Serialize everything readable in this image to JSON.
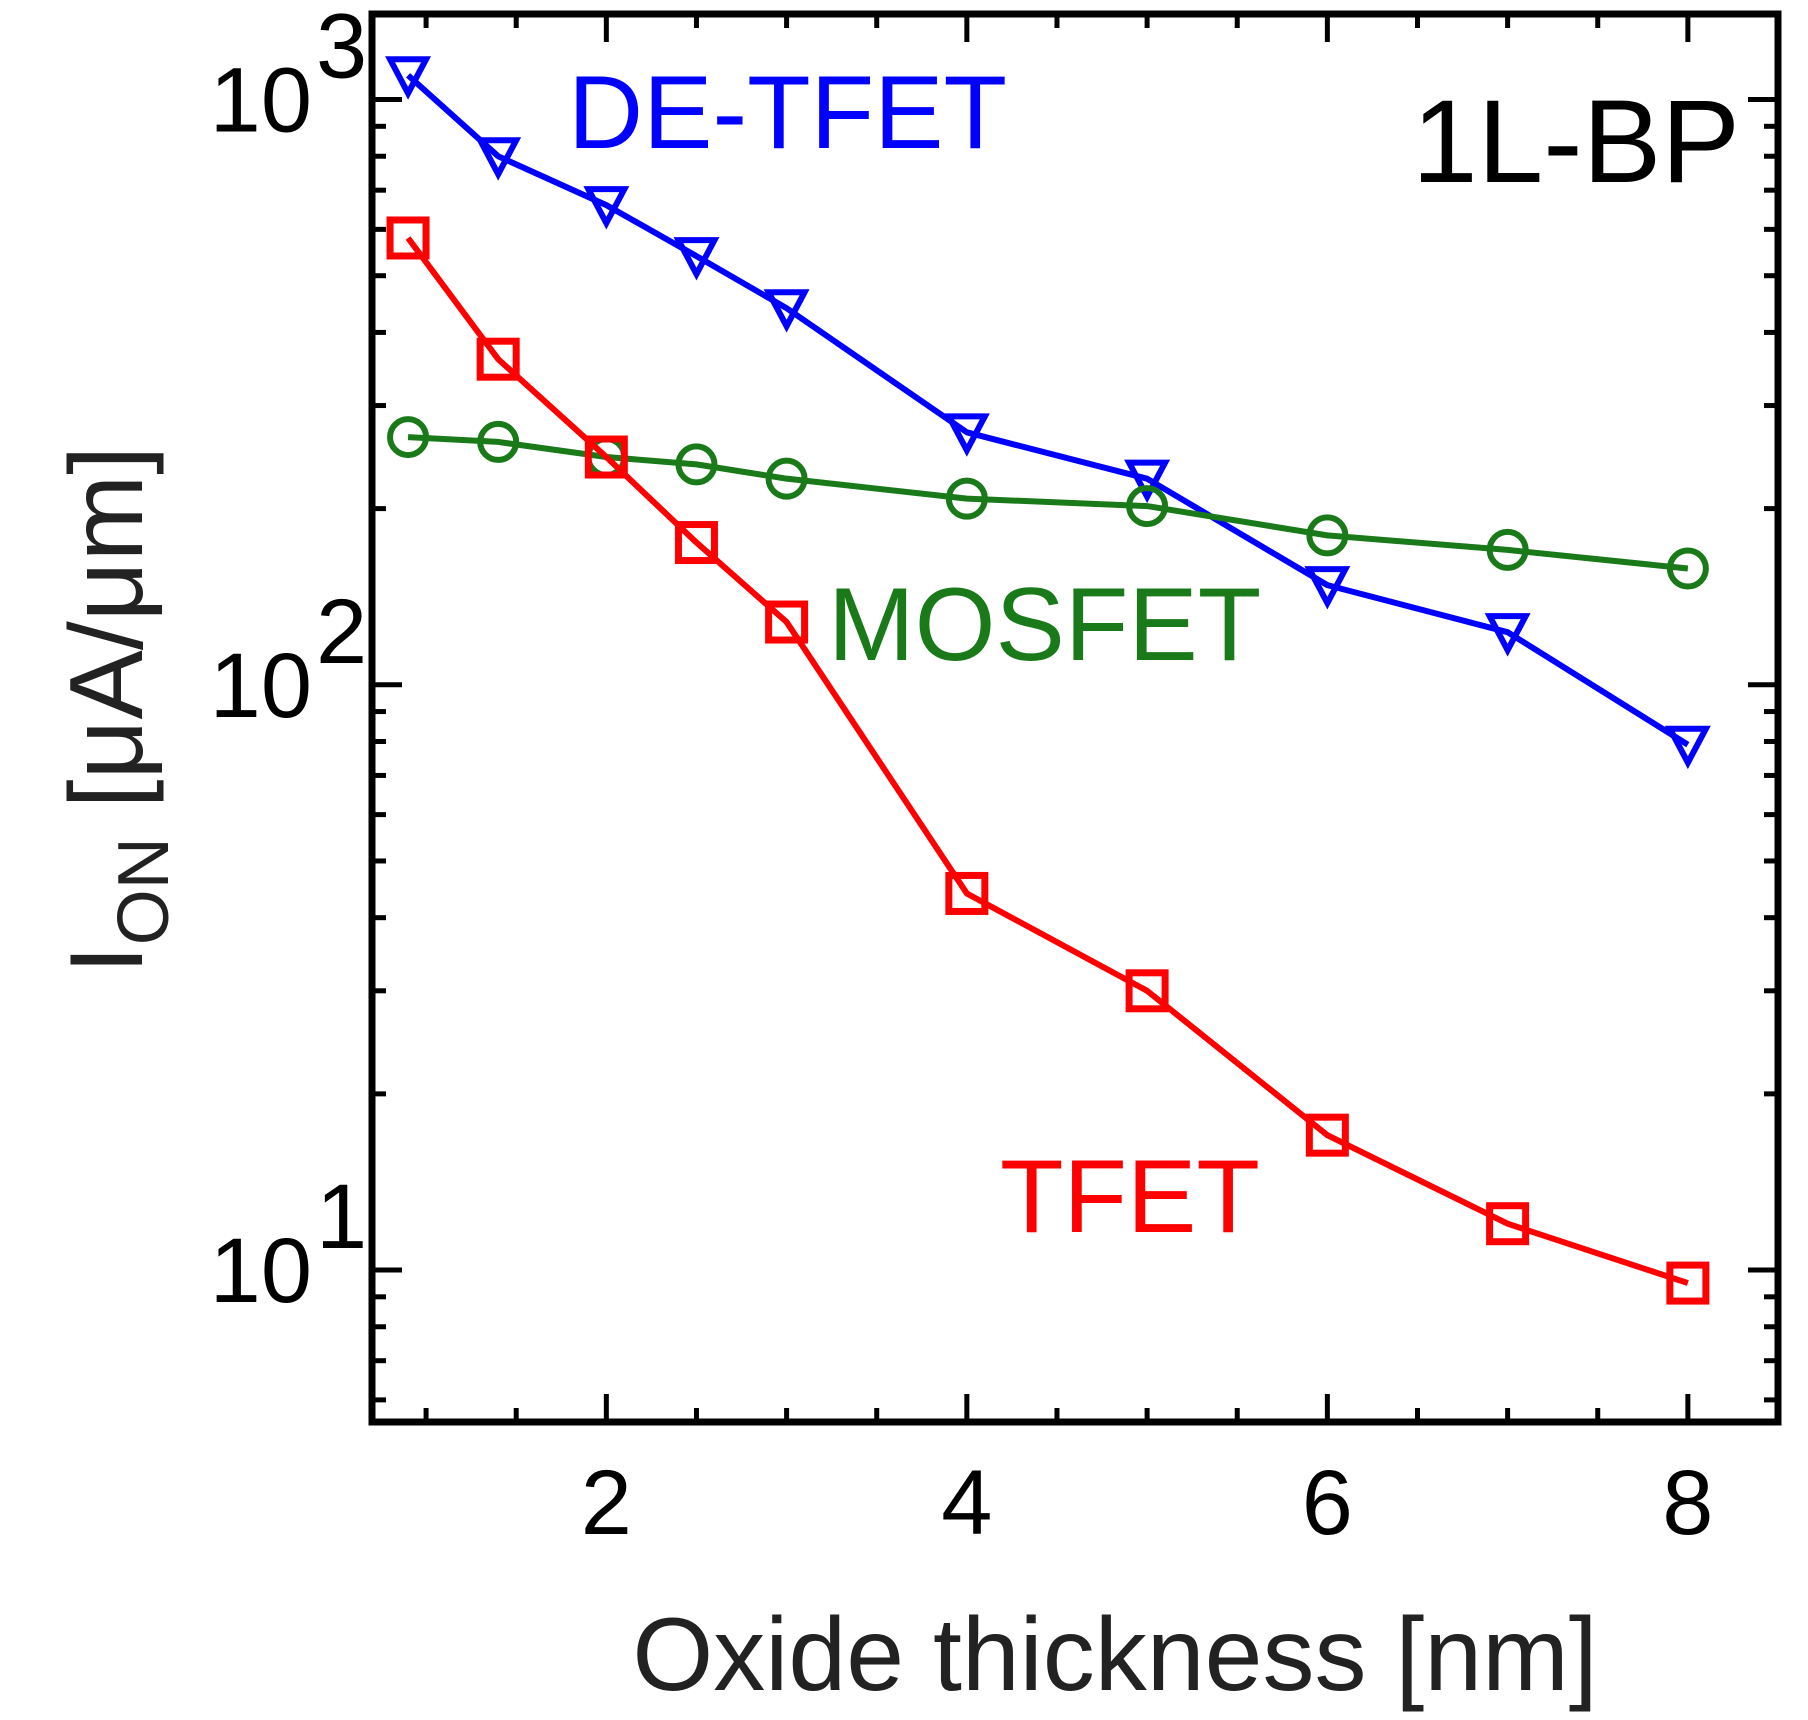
{
  "chart_data": {
    "type": "line",
    "title": "",
    "panel_label": "1L-BP",
    "xlabel": "Oxide thickness [nm]",
    "ylabel": "I",
    "ylabel_subscript": "ON",
    "ylabel_unit": " [μA/μm]",
    "xscale": "linear",
    "yscale": "log",
    "xlim": [
      0.7,
      8.5
    ],
    "ylim": [
      5.5,
      1400
    ],
    "xticks": [
      2,
      4,
      6,
      8
    ],
    "xtick_labels": [
      "2",
      "4",
      "6",
      "8"
    ],
    "yticks": [
      10,
      100,
      1000
    ],
    "ytick_labels": [
      {
        "base": "10",
        "exp": "1"
      },
      {
        "base": "10",
        "exp": "2"
      },
      {
        "base": "10",
        "exp": "3"
      }
    ],
    "x": [
      0.9,
      1.4,
      2.0,
      2.5,
      3.0,
      4.0,
      5.0,
      6.0,
      7.0,
      8.0
    ],
    "series": [
      {
        "name": "DE-TFET",
        "color": "#0000ff",
        "marker": "triangle-down",
        "values": [
          1100,
          800,
          660,
          540,
          440,
          270,
          225,
          148,
          123,
          79
        ]
      },
      {
        "name": "MOSFET",
        "color": "#1a7a1a",
        "marker": "circle",
        "values": [
          265,
          260,
          245,
          238,
          225,
          208,
          202,
          180,
          170,
          158
        ]
      },
      {
        "name": "TFET",
        "color": "#ff0000",
        "marker": "square",
        "values": [
          580,
          360,
          245,
          175,
          128,
          44,
          30,
          17,
          12,
          9.5
        ]
      }
    ]
  }
}
